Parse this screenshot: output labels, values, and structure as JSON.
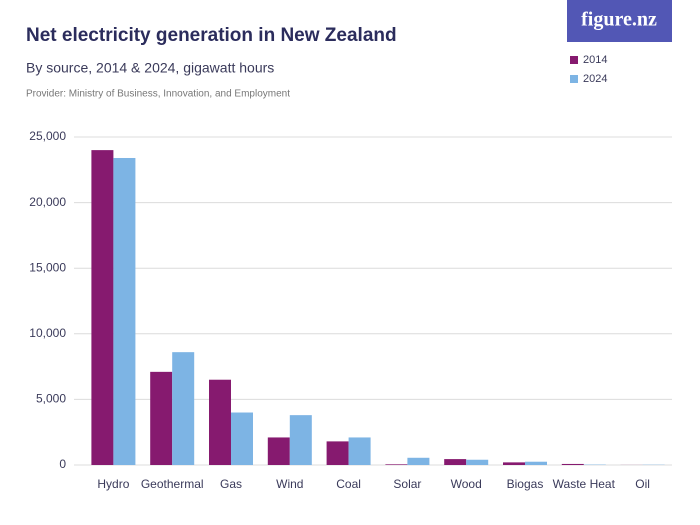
{
  "chart_data": {
    "type": "bar",
    "title": "Net electricity generation in New Zealand",
    "subtitle": "By source, 2014 & 2024, gigawatt hours",
    "provider": "Provider: Ministry of Business, Innovation, and Employment",
    "logo": "figure.nz",
    "categories": [
      "Hydro",
      "Geothermal",
      "Gas",
      "Wind",
      "Coal",
      "Solar",
      "Wood",
      "Biogas",
      "Waste Heat",
      "Oil"
    ],
    "series": [
      {
        "name": "2014",
        "color": "#861a6f",
        "values": [
          24000,
          7100,
          6500,
          2100,
          1800,
          50,
          450,
          200,
          80,
          5
        ]
      },
      {
        "name": "2024",
        "color": "#7db4e4",
        "values": [
          23400,
          8600,
          4000,
          3800,
          2100,
          550,
          400,
          250,
          30,
          20
        ]
      }
    ],
    "ylim": [
      0,
      25000
    ],
    "yticks": [
      0,
      {
        "value": 5000,
        "label": "5,000"
      },
      {
        "value": 10000,
        "label": "10,000"
      },
      {
        "value": 15000,
        "label": "15,000"
      },
      {
        "value": 20000,
        "label": "20,000"
      },
      {
        "value": 25000,
        "label": "25,000"
      }
    ],
    "grid": true
  }
}
